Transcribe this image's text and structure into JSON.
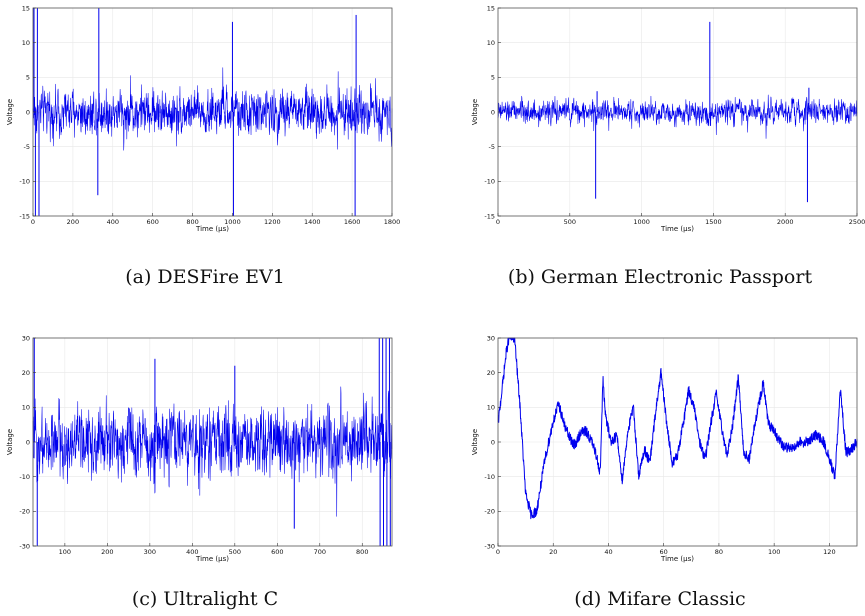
{
  "figure": {
    "panels": [
      {
        "tag": "(a)",
        "caption": "DESFire EV1"
      },
      {
        "tag": "(b)",
        "caption": "German Electronic Passport"
      },
      {
        "tag": "(c)",
        "caption": "Ultralight C"
      },
      {
        "tag": "(d)",
        "caption": "Mifare Classic"
      }
    ]
  },
  "chart_data": [
    {
      "type": "line",
      "title": "",
      "xlabel": "Time (μs)",
      "ylabel": "Voltage",
      "xlim": [
        0,
        1800
      ],
      "ylim": [
        -15,
        15
      ],
      "xticks": [
        0,
        200,
        400,
        600,
        800,
        1000,
        1200,
        1400,
        1600,
        1800
      ],
      "yticks": [
        -15,
        -10,
        -5,
        0,
        5,
        10,
        15
      ],
      "grid": true,
      "line_color": "#0000ee",
      "signal": {
        "kind": "noise",
        "noise_amplitude": 4,
        "wave": null,
        "spikes": [
          {
            "x": 5,
            "y": 15
          },
          {
            "x": 12,
            "y": -15
          },
          {
            "x": 22,
            "y": 15
          },
          {
            "x": 30,
            "y": -15
          },
          {
            "x": 325,
            "y": -12
          },
          {
            "x": 330,
            "y": 15
          },
          {
            "x": 1000,
            "y": 13
          },
          {
            "x": 1005,
            "y": -15
          },
          {
            "x": 1615,
            "y": -15
          },
          {
            "x": 1620,
            "y": 14
          }
        ]
      }
    },
    {
      "type": "line",
      "title": "",
      "xlabel": "Time (μs)",
      "ylabel": "Voltage",
      "xlim": [
        0,
        2500
      ],
      "ylim": [
        -15,
        15
      ],
      "xticks": [
        0,
        500,
        1000,
        1500,
        2000,
        2500
      ],
      "yticks": [
        -15,
        -10,
        -5,
        0,
        5,
        10,
        15
      ],
      "grid": true,
      "line_color": "#0000ee",
      "signal": {
        "kind": "noise",
        "noise_amplitude": 2,
        "wave": null,
        "spikes": [
          {
            "x": 680,
            "y": -12.5
          },
          {
            "x": 690,
            "y": 3
          },
          {
            "x": 1475,
            "y": 13
          },
          {
            "x": 1480,
            "y": -2
          },
          {
            "x": 2155,
            "y": -13
          },
          {
            "x": 2165,
            "y": 3.5
          }
        ]
      }
    },
    {
      "type": "line",
      "title": "",
      "xlabel": "Time (μs)",
      "ylabel": "Voltage",
      "xlim": [
        25,
        870
      ],
      "ylim": [
        -30,
        30
      ],
      "xticks": [
        100,
        200,
        300,
        400,
        500,
        600,
        700,
        800
      ],
      "yticks": [
        -30,
        -20,
        -10,
        0,
        10,
        20,
        30
      ],
      "grid": true,
      "line_color": "#0000ee",
      "signal": {
        "kind": "noise",
        "noise_amplitude": 12,
        "wave": null,
        "spikes": [
          {
            "x": 28,
            "y": 30
          },
          {
            "x": 35,
            "y": -30
          },
          {
            "x": 312,
            "y": 24
          },
          {
            "x": 500,
            "y": 22
          },
          {
            "x": 640,
            "y": -25
          },
          {
            "x": 840,
            "y": 30
          },
          {
            "x": 842,
            "y": -30
          },
          {
            "x": 848,
            "y": 30
          },
          {
            "x": 850,
            "y": -30
          },
          {
            "x": 856,
            "y": 30
          },
          {
            "x": 858,
            "y": -30
          },
          {
            "x": 864,
            "y": 30
          },
          {
            "x": 866,
            "y": -30
          }
        ]
      }
    },
    {
      "type": "line",
      "title": "",
      "xlabel": "Time (μs)",
      "ylabel": "Voltage",
      "xlim": [
        0,
        130
      ],
      "ylim": [
        -30,
        30
      ],
      "xticks": [
        0,
        20,
        40,
        60,
        80,
        100,
        120
      ],
      "yticks": [
        -30,
        -20,
        -10,
        0,
        10,
        20,
        30
      ],
      "grid": true,
      "line_color": "#0000ee",
      "signal": {
        "kind": "wave",
        "noise_amplitude": 1.5,
        "wave": [
          [
            0,
            5
          ],
          [
            3,
            26
          ],
          [
            4,
            30
          ],
          [
            6,
            30
          ],
          [
            8,
            10
          ],
          [
            10,
            -15
          ],
          [
            12,
            -21
          ],
          [
            14,
            -20
          ],
          [
            17,
            -5
          ],
          [
            20,
            6
          ],
          [
            22,
            11
          ],
          [
            24,
            5
          ],
          [
            26,
            1
          ],
          [
            28,
            -1
          ],
          [
            30,
            3
          ],
          [
            32,
            3
          ],
          [
            34,
            0
          ],
          [
            36,
            -5
          ],
          [
            37,
            -9
          ],
          [
            38,
            18
          ],
          [
            39,
            7
          ],
          [
            41,
            0
          ],
          [
            43,
            2
          ],
          [
            45,
            -11
          ],
          [
            47,
            3
          ],
          [
            49,
            10
          ],
          [
            51,
            -10
          ],
          [
            53,
            -2
          ],
          [
            55,
            -6
          ],
          [
            57,
            8
          ],
          [
            59,
            20
          ],
          [
            61,
            6
          ],
          [
            63,
            -6
          ],
          [
            65,
            -4
          ],
          [
            67,
            5
          ],
          [
            69,
            15
          ],
          [
            71,
            10
          ],
          [
            73,
            0
          ],
          [
            75,
            -5
          ],
          [
            77,
            5
          ],
          [
            79,
            14
          ],
          [
            81,
            4
          ],
          [
            83,
            -4
          ],
          [
            85,
            5
          ],
          [
            87,
            19
          ],
          [
            89,
            -3
          ],
          [
            91,
            -5
          ],
          [
            93,
            5
          ],
          [
            96,
            17
          ],
          [
            98,
            5
          ],
          [
            100,
            3
          ],
          [
            103,
            -1
          ],
          [
            106,
            -2
          ],
          [
            109,
            0
          ],
          [
            112,
            0
          ],
          [
            115,
            2
          ],
          [
            118,
            0
          ],
          [
            120,
            -5
          ],
          [
            122,
            -10
          ],
          [
            124,
            15
          ],
          [
            126,
            -3
          ],
          [
            128,
            -2
          ],
          [
            130,
            0
          ]
        ],
        "spikes": []
      }
    }
  ]
}
